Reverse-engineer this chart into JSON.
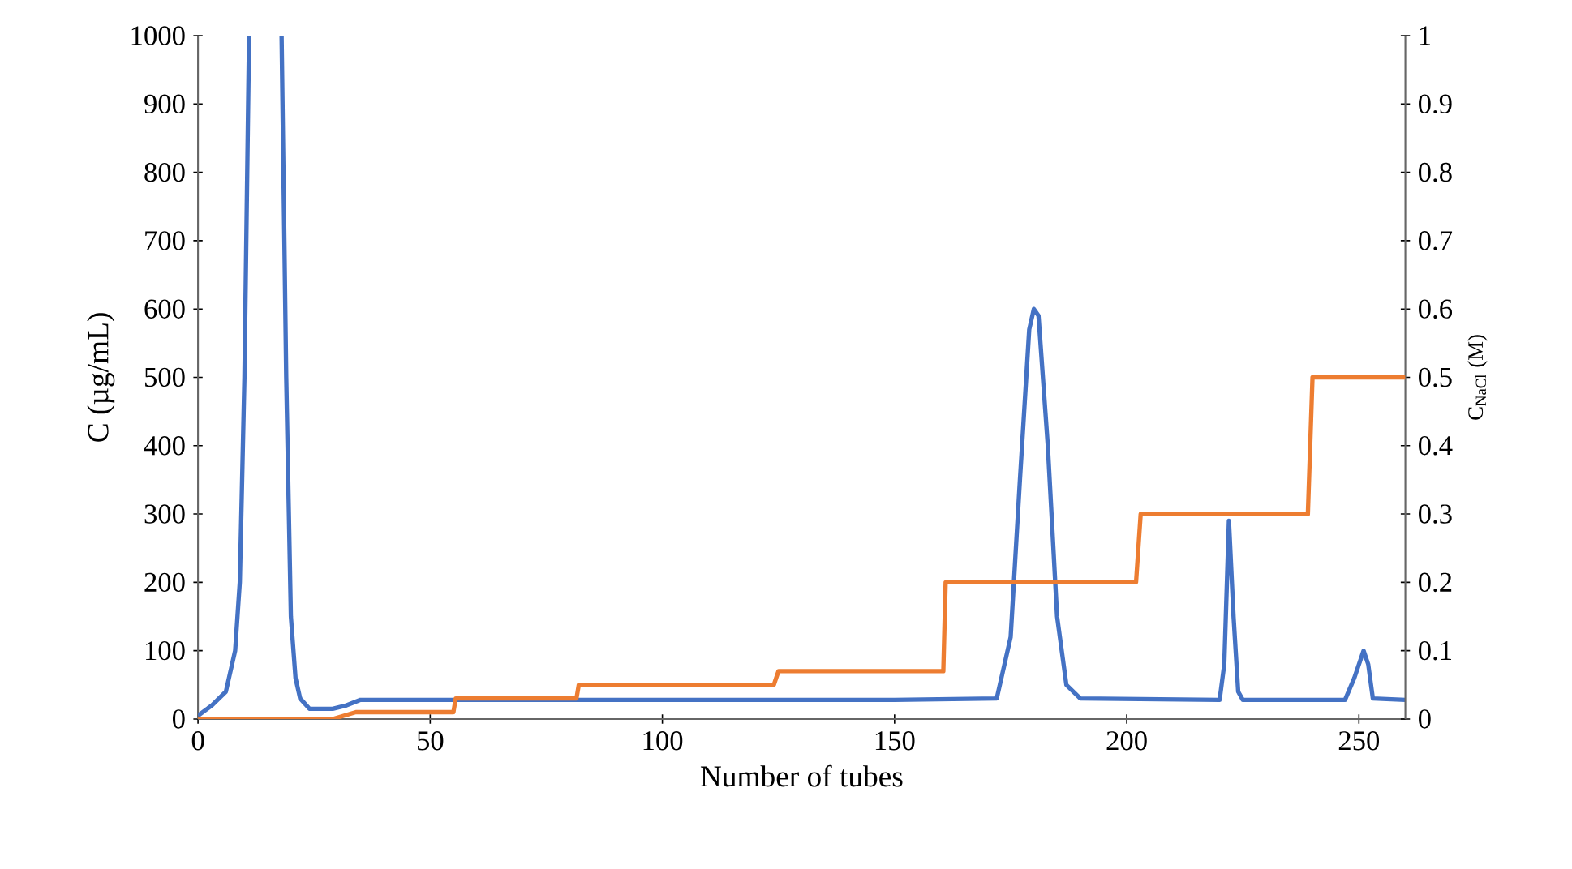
{
  "chart_data": {
    "type": "line",
    "xlabel": "Number of tubes",
    "ylabel": "C (µg/mL)",
    "y2label": "C$_{NaCl}$ (M)",
    "xlim": [
      0,
      260
    ],
    "ylim": [
      0,
      1000
    ],
    "y2lim": [
      0,
      1
    ],
    "xticks": [
      0,
      50,
      100,
      150,
      200,
      250
    ],
    "yticks": [
      0,
      100,
      200,
      300,
      400,
      500,
      600,
      700,
      800,
      900,
      1000
    ],
    "y2ticks": [
      0,
      0.1,
      0.2,
      0.3,
      0.4,
      0.5,
      0.6,
      0.7,
      0.8,
      0.9,
      1
    ],
    "grid": false,
    "marker": "none",
    "line_style": "solid",
    "series": [
      {
        "color": "#4472c4",
        "axis": "y",
        "x": [
          0,
          3,
          6,
          8,
          9,
          10,
          11,
          14.5,
          18,
          19,
          20,
          21,
          22,
          24,
          29,
          32,
          35,
          50,
          100,
          150,
          172,
          175,
          177,
          179,
          180,
          181,
          183,
          185,
          187,
          190,
          220,
          221,
          222,
          223,
          224,
          225,
          247,
          249,
          251,
          252,
          253,
          260
        ],
        "values": [
          5,
          20,
          40,
          100,
          200,
          500,
          1000,
          null,
          1000,
          500,
          150,
          60,
          30,
          15,
          15,
          20,
          28,
          28,
          28,
          28,
          30,
          120,
          350,
          570,
          600,
          590,
          400,
          150,
          50,
          30,
          28,
          80,
          290,
          150,
          40,
          28,
          28,
          60,
          100,
          80,
          30,
          28
        ]
      },
      {
        "color": "#ed7d31",
        "axis": "y2",
        "x": [
          0,
          29,
          34,
          55,
          55.5,
          81.5,
          82,
          124,
          125,
          160.5,
          161,
          202,
          203,
          239,
          240,
          260
        ],
        "values": [
          0,
          0,
          0.01,
          0.01,
          0.03,
          0.03,
          0.05,
          0.05,
          0.07,
          0.07,
          0.2,
          0.2,
          0.3,
          0.3,
          0.5,
          0.5
        ]
      }
    ]
  }
}
